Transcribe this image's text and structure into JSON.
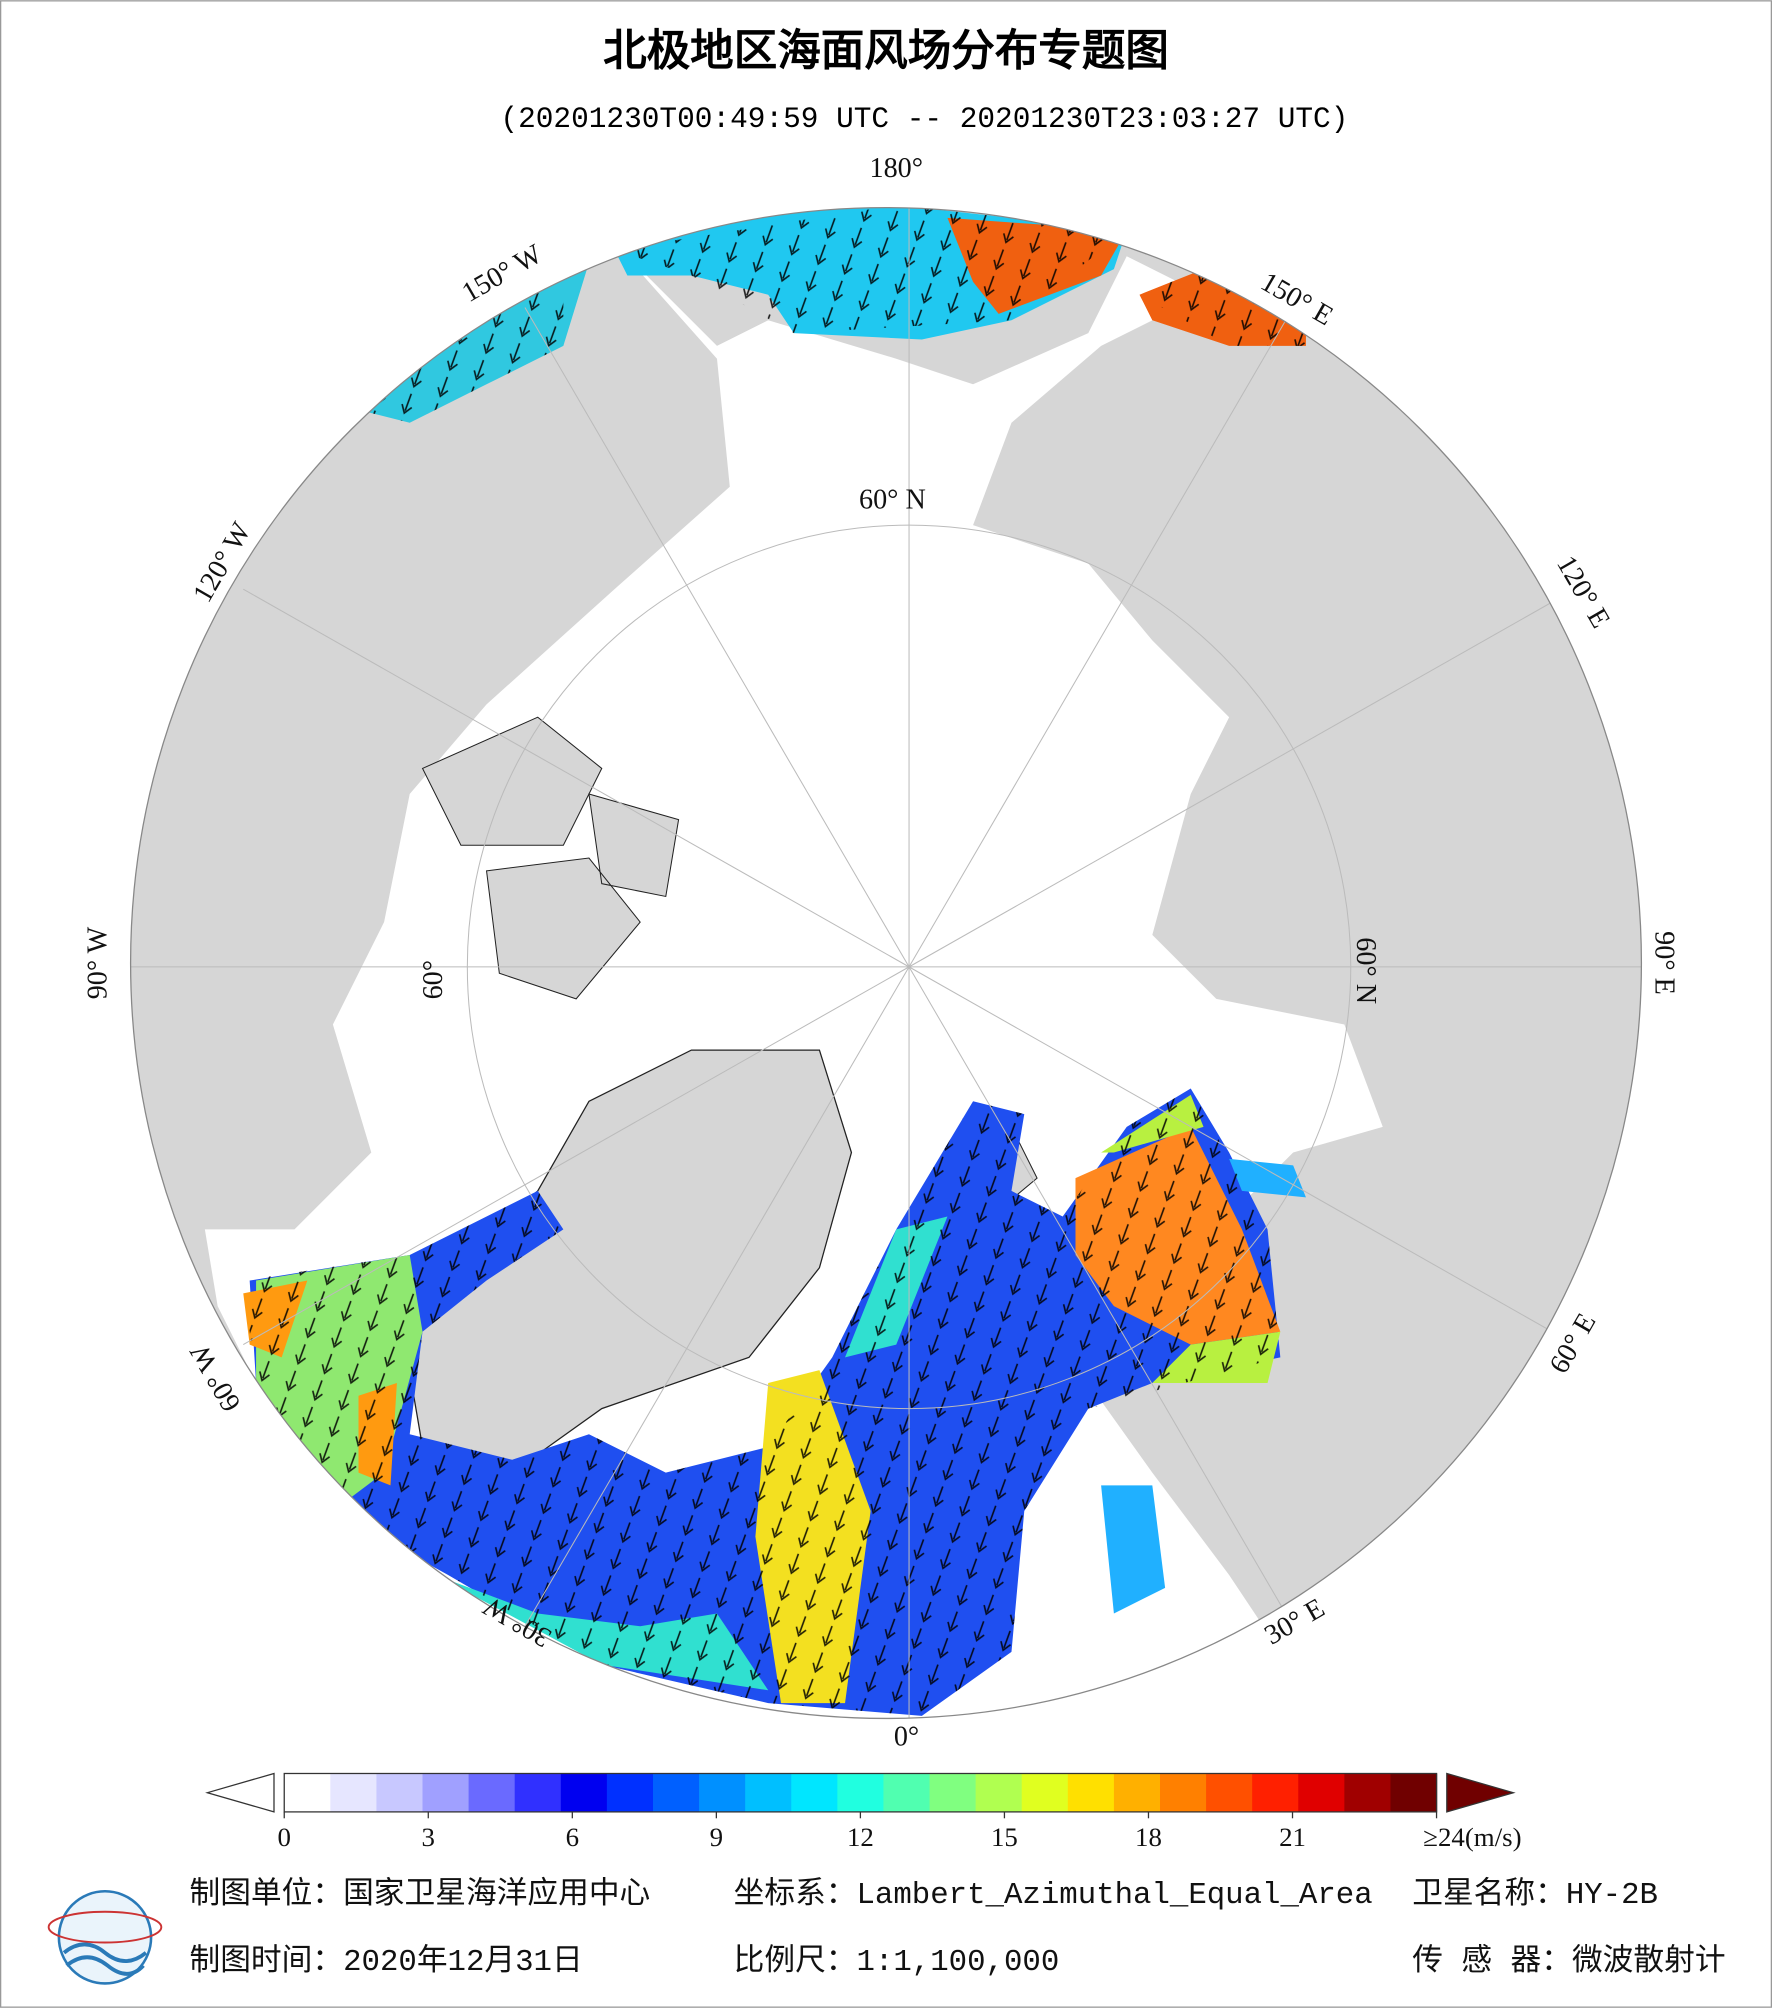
{
  "header": {
    "title": "北极地区海面风场分布专题图",
    "subtitle": "(20201230T00:49:59 UTC -- 20201230T23:03:27 UTC)"
  },
  "map": {
    "longitude_labels": [
      "180°",
      "150° E",
      "120° E",
      "90° E",
      "60° E",
      "30° E",
      "0°",
      "30° W",
      "60° W",
      "90° W",
      "120° W",
      "150° W"
    ],
    "latitude_labels": [
      "60° N",
      "60° N",
      "60°"
    ]
  },
  "colorbar": {
    "range": [
      0,
      24
    ],
    "ticks": [
      0,
      3,
      6,
      9,
      12,
      15,
      18,
      21,
      {
        "value": 24,
        "label": "≥24(m/s)"
      }
    ],
    "colors": [
      "#ffffff",
      "#e6e6ff",
      "#c8c8ff",
      "#a0a0ff",
      "#6a6aff",
      "#3030ff",
      "#0000f0",
      "#0030ff",
      "#0060ff",
      "#0090ff",
      "#00bfff",
      "#00e6ff",
      "#20ffe0",
      "#50ffb0",
      "#80ff80",
      "#b0ff50",
      "#e0ff20",
      "#ffe000",
      "#ffb000",
      "#ff8000",
      "#ff5000",
      "#ff2000",
      "#e00000",
      "#a00000",
      "#700000"
    ]
  },
  "footer": {
    "unit": "制图单位：国家卫星海洋应用中心",
    "projection": "坐标系：Lambert_Azimuthal_Equal_Area",
    "satellite": "卫星名称：HY-2B",
    "date": "制图时间：2020年12月31日",
    "scale": "比例尺：1:1,100,000",
    "sensor": "传 感 器：微波散射计"
  }
}
